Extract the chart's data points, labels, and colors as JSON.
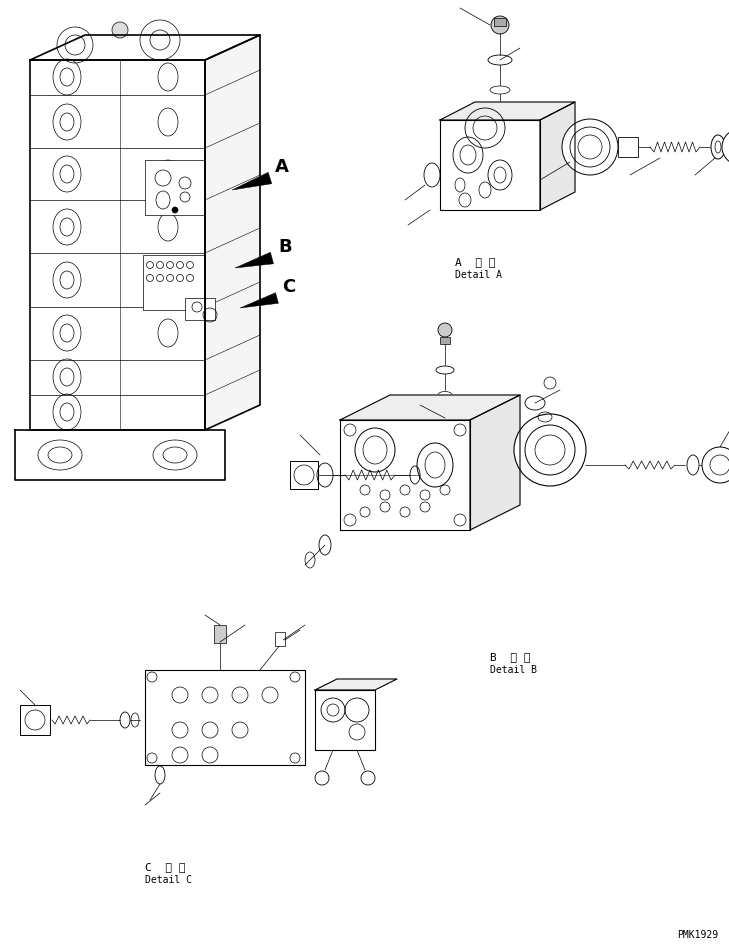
{
  "background_color": "#ffffff",
  "line_color": "#000000",
  "fig_width": 7.29,
  "fig_height": 9.5,
  "dpi": 100,
  "label_A_kanji": "A  詳 細",
  "label_A_english": "Detail A",
  "label_B_kanji": "B  詳 細",
  "label_B_english": "Detail B",
  "label_C_kanji": "C  詳 細",
  "label_C_english": "Detail C",
  "watermark": "PMK1929"
}
